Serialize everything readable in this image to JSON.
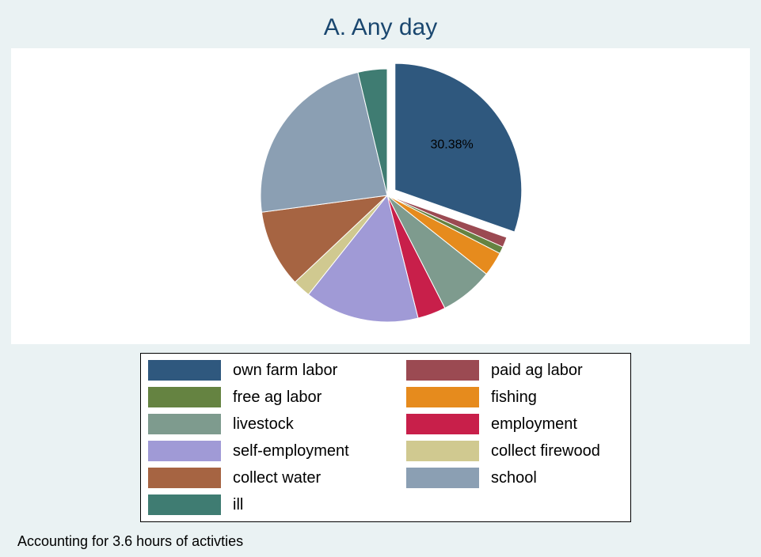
{
  "chart_data": {
    "type": "pie",
    "title": "A. Any day",
    "note": "Accounting for 3.6 hours of activties",
    "slices": [
      {
        "label": "own farm labor",
        "value": 30.38,
        "color": "#2f587e",
        "exploded": true,
        "value_label": "30.38%"
      },
      {
        "label": "paid ag labor",
        "value": 1.3,
        "color": "#9b4a52",
        "exploded": false,
        "value_label": ""
      },
      {
        "label": "free ag labor",
        "value": 0.9,
        "color": "#658341",
        "exploded": false,
        "value_label": ""
      },
      {
        "label": "fishing",
        "value": 3.1,
        "color": "#e68b1d",
        "exploded": false,
        "value_label": ""
      },
      {
        "label": "livestock",
        "value": 6.8,
        "color": "#7e9b8e",
        "exploded": false,
        "value_label": ""
      },
      {
        "label": "employment",
        "value": 3.6,
        "color": "#c81f4a",
        "exploded": false,
        "value_label": ""
      },
      {
        "label": "self-employment",
        "value": 14.6,
        "color": "#a09ad6",
        "exploded": false,
        "value_label": ""
      },
      {
        "label": "collect firewood",
        "value": 2.3,
        "color": "#d0c990",
        "exploded": false,
        "value_label": ""
      },
      {
        "label": "collect water",
        "value": 9.9,
        "color": "#a66442",
        "exploded": false,
        "value_label": ""
      },
      {
        "label": "school",
        "value": 23.4,
        "color": "#8b9fb3",
        "exploded": false,
        "value_label": ""
      },
      {
        "label": "ill",
        "value": 3.72,
        "color": "#3f7c72",
        "exploded": false,
        "value_label": ""
      }
    ],
    "legend": {
      "columns": 2,
      "placement": "bottom"
    }
  }
}
